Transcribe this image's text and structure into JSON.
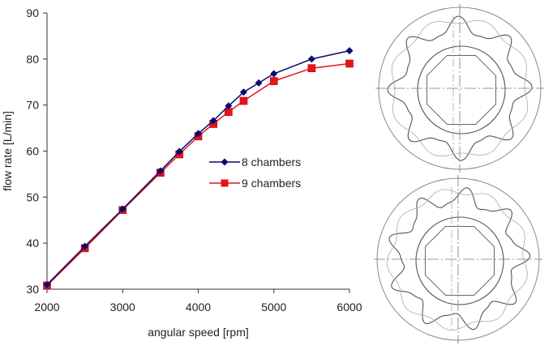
{
  "chart_data": {
    "type": "line",
    "xlabel": "angular speed [rpm]",
    "ylabel": "flow rate [L/min]",
    "xlim": [
      2000,
      6000
    ],
    "ylim": [
      30,
      90
    ],
    "xticks": [
      2000,
      3000,
      4000,
      5000,
      6000
    ],
    "yticks": [
      30,
      40,
      50,
      60,
      70,
      80,
      90
    ],
    "grid": false,
    "legend_position": "center-right",
    "series": [
      {
        "name": "8 chambers",
        "color": "#0a0a6e",
        "marker": "diamond",
        "x": [
          2000,
          2500,
          3000,
          3500,
          3750,
          4000,
          4200,
          4400,
          4600,
          4800,
          5000,
          5500,
          6000
        ],
        "y": [
          31.0,
          39.3,
          47.4,
          55.7,
          59.9,
          63.8,
          66.6,
          69.8,
          72.8,
          74.8,
          76.8,
          80.0,
          81.8
        ]
      },
      {
        "name": "9 chambers",
        "color": "#e8141a",
        "marker": "square",
        "x": [
          2000,
          2500,
          3000,
          3500,
          3750,
          4000,
          4200,
          4400,
          4600,
          5000,
          5500,
          6000
        ],
        "y": [
          30.8,
          38.9,
          47.2,
          55.3,
          59.3,
          63.2,
          65.9,
          68.5,
          70.9,
          75.2,
          78.0,
          79.0
        ]
      }
    ]
  },
  "diagrams": [
    {
      "name": "rotor-drawing-8-chambers",
      "lobes": 8
    },
    {
      "name": "rotor-drawing-9-chambers",
      "lobes": 9
    }
  ]
}
